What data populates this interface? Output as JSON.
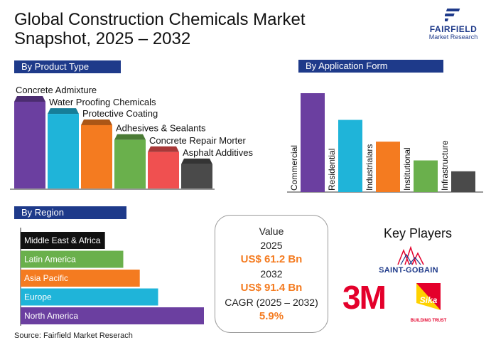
{
  "title": "Global Construction Chemicals Market Snapshot, 2025 – 2032",
  "logo": {
    "name": "FAIRFIELD",
    "sub": "Market Research"
  },
  "sections": {
    "product_type": "By Product Type",
    "application_form": "By Application Form",
    "region": "By Region"
  },
  "colors": {
    "navy": "#1e3a8a",
    "purple": "#6b3fa0",
    "cyan": "#1fb4d9",
    "orange": "#f47b20",
    "green": "#6ab04c",
    "red": "#f05050",
    "gray": "#4a4a4a",
    "black": "#111111",
    "accent": "#f47b20"
  },
  "chart_data": [
    {
      "type": "bar",
      "section": "By Product Type",
      "categories": [
        "Concrete Admixture",
        "Water Proofing Chemicals",
        "Protective Coating",
        "Adhesives & Sealants",
        "Concrete Repair Morter",
        "Asphalt Additives"
      ],
      "values": [
        100,
        86,
        73,
        56,
        42,
        28
      ],
      "colors": [
        "#6b3fa0",
        "#1fb4d9",
        "#f47b20",
        "#6ab04c",
        "#f05050",
        "#4a4a4a"
      ],
      "style": "3d-columns"
    },
    {
      "type": "bar",
      "section": "By Application Form",
      "categories": [
        "Commercial",
        "Residential",
        "Industrialars",
        "Institutional",
        "Infrastructure"
      ],
      "values": [
        100,
        73,
        51,
        32,
        21
      ],
      "colors": [
        "#6b3fa0",
        "#1fb4d9",
        "#f47b20",
        "#6ab04c",
        "#4a4a4a"
      ],
      "label_orientation": "vertical"
    },
    {
      "type": "bar",
      "orientation": "horizontal",
      "section": "By Region",
      "categories": [
        "Middle East & Africa",
        "Latin America",
        "Asia Pacific",
        "Europe",
        "North America"
      ],
      "values": [
        46,
        56,
        65,
        75,
        100
      ],
      "colors": [
        "#111111",
        "#6ab04c",
        "#f47b20",
        "#1fb4d9",
        "#6b3fa0"
      ]
    }
  ],
  "value_box": {
    "label": "Value",
    "year1": "2025",
    "value1": "US$ 61.2 Bn",
    "year2": "2032",
    "value2": "US$ 91.4 Bn",
    "cagr_label": "CAGR (2025 – 2032)",
    "cagr": "5.9%"
  },
  "key_players": {
    "title": "Key Players",
    "players": [
      "SAINT-GOBAIN",
      "3M",
      "Sika"
    ],
    "sika_tagline": "BUILDING TRUST"
  },
  "source": "Source: Fairfield Market Reserach"
}
